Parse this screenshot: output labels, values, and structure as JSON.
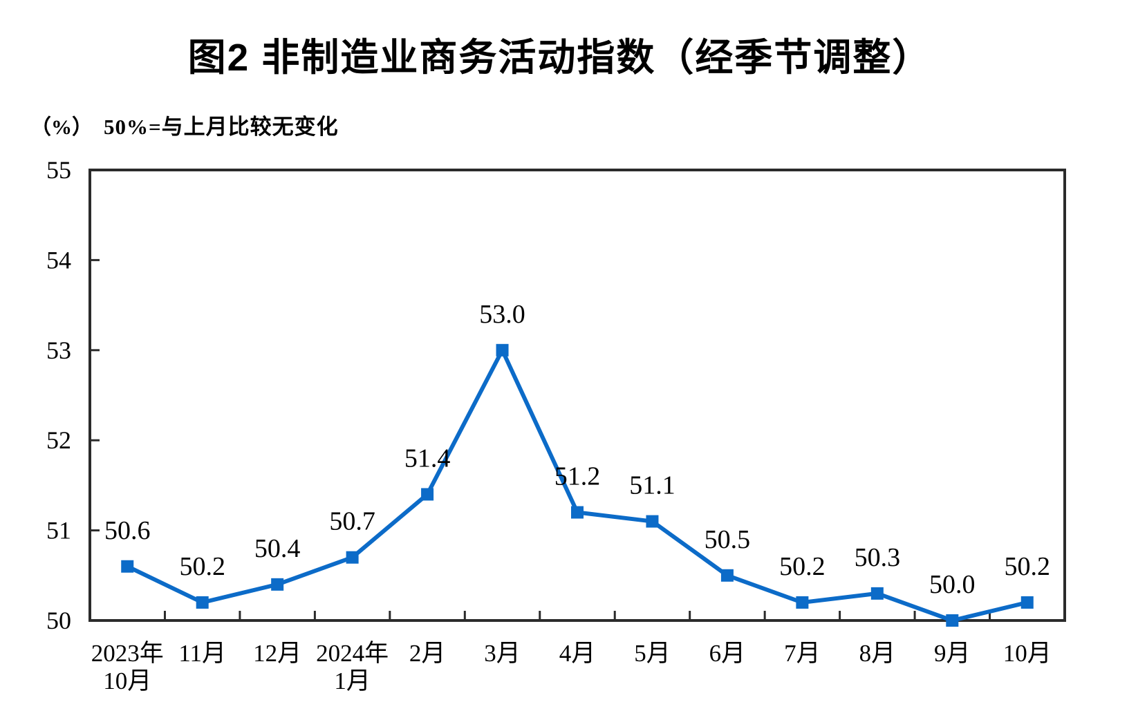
{
  "page": {
    "title": "图2 非制造业商务活动指数（经季节调整）",
    "unit_label": "（%）",
    "reference_note": "50%=与上月比较无变化"
  },
  "chart_data": {
    "type": "line",
    "title": "图2 非制造业商务活动指数（经季节调整）",
    "unit": "%",
    "note": "50%=与上月比较无变化",
    "categories": [
      [
        "2023年",
        "10月"
      ],
      [
        "11月"
      ],
      [
        "12月"
      ],
      [
        "2024年",
        "1月"
      ],
      [
        "2月"
      ],
      [
        "3月"
      ],
      [
        "4月"
      ],
      [
        "5月"
      ],
      [
        "6月"
      ],
      [
        "7月"
      ],
      [
        "8月"
      ],
      [
        "9月"
      ],
      [
        "10月"
      ]
    ],
    "values": [
      50.6,
      50.2,
      50.4,
      50.7,
      51.4,
      53.0,
      51.2,
      51.1,
      50.5,
      50.2,
      50.3,
      50.0,
      50.2
    ],
    "data_labels": [
      "50.6",
      "50.2",
      "50.4",
      "50.7",
      "51.4",
      "53.0",
      "51.2",
      "51.1",
      "50.5",
      "50.2",
      "50.3",
      "50.0",
      "50.2"
    ],
    "ylim": [
      50,
      55
    ],
    "yticks": [
      50,
      51,
      52,
      53,
      54,
      55
    ],
    "ytick_labels": [
      "50",
      "51",
      "52",
      "53",
      "54",
      "55"
    ],
    "grid": false,
    "legend": "none",
    "marker": "square",
    "line_color": "#0C6BC8",
    "axis_color": "#2B2B2B",
    "label_color": "#000000"
  }
}
